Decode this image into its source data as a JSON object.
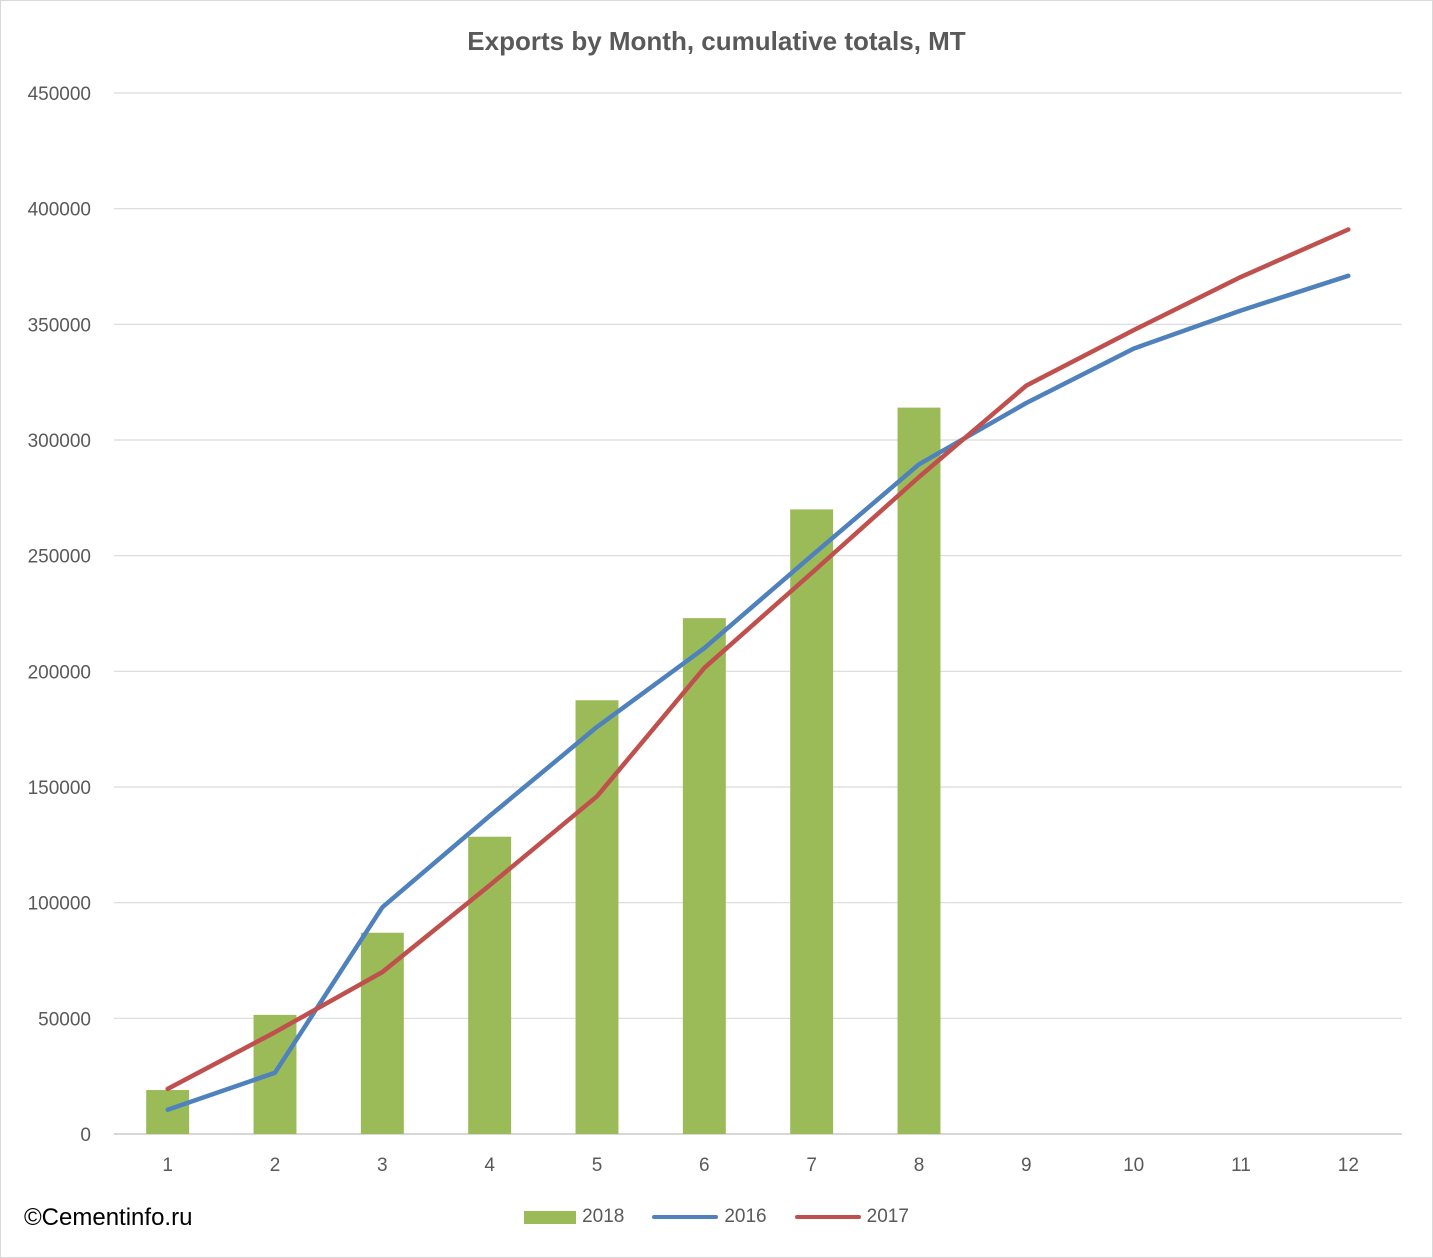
{
  "credit": "©Cementinfo.ru",
  "chart_data": {
    "type": "bar",
    "title": "Exports by Month, cumulative totals, MT",
    "xlabel": "",
    "ylabel": "",
    "categories": [
      "1",
      "2",
      "3",
      "4",
      "5",
      "6",
      "7",
      "8",
      "9",
      "10",
      "11",
      "12"
    ],
    "ylim": [
      0,
      450000
    ],
    "yticks": [
      0,
      50000,
      100000,
      150000,
      200000,
      250000,
      300000,
      350000,
      400000,
      450000
    ],
    "grid": true,
    "legend_position": "bottom",
    "series": [
      {
        "name": "2018",
        "type": "bar",
        "color": "#9bbb59",
        "values": [
          19000,
          51500,
          87000,
          128500,
          187500,
          223000,
          270000,
          314000,
          null,
          null,
          null,
          null
        ]
      },
      {
        "name": "2016",
        "type": "line",
        "color": "#4f81bd",
        "values": [
          10500,
          26500,
          98000,
          137500,
          176000,
          210000,
          250000,
          289500,
          316000,
          339500,
          356000,
          371000
        ]
      },
      {
        "name": "2017",
        "type": "line",
        "color": "#c0504d",
        "values": [
          19500,
          44000,
          70000,
          107500,
          146000,
          201500,
          242500,
          284000,
          323500,
          347500,
          370500,
          391000
        ]
      }
    ]
  }
}
